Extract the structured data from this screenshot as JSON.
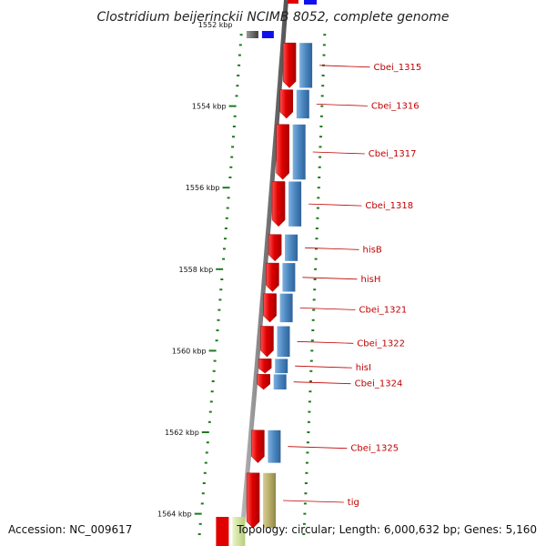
{
  "title": "Clostridium beijerinckii NCIMB 8052, complete genome",
  "accession": "Accession: NC_009617",
  "topology": "Topology: circular; Length: 6,000,632 bp; Genes: 5,160",
  "ticks": [
    {
      "label": "1552 kbp",
      "kbp": 1552
    },
    {
      "label": "1554 kbp",
      "kbp": 1554
    },
    {
      "label": "1556 kbp",
      "kbp": 1556
    },
    {
      "label": "1558 kbp",
      "kbp": 1558
    },
    {
      "label": "1560 kbp",
      "kbp": 1560
    },
    {
      "label": "1562 kbp",
      "kbp": 1562
    },
    {
      "label": "1564 kbp",
      "kbp": 1564
    }
  ],
  "colors": {
    "cds": "#e00000",
    "gene": "#4a86c0",
    "tig_gene": "#b8ad6a",
    "backbone": "#8a8a8a",
    "ticks": "#1e7a1e",
    "label": "#c00000"
  },
  "genes": [
    {
      "name": "Cbei_1315",
      "start_kbp": 1552.45,
      "end_kbp": 1553.55
    },
    {
      "name": "Cbei_1316",
      "start_kbp": 1553.6,
      "end_kbp": 1554.3
    },
    {
      "name": "Cbei_1317",
      "start_kbp": 1554.45,
      "end_kbp": 1555.8
    },
    {
      "name": "Cbei_1318",
      "start_kbp": 1555.85,
      "end_kbp": 1556.95
    },
    {
      "name": "hisB",
      "start_kbp": 1557.15,
      "end_kbp": 1557.8
    },
    {
      "name": "hisH",
      "start_kbp": 1557.85,
      "end_kbp": 1558.55
    },
    {
      "name": "Cbei_1321",
      "start_kbp": 1558.6,
      "end_kbp": 1559.3
    },
    {
      "name": "Cbei_1322",
      "start_kbp": 1559.4,
      "end_kbp": 1560.15
    },
    {
      "name": "hisI",
      "start_kbp": 1560.2,
      "end_kbp": 1560.55
    },
    {
      "name": "Cbei_1324",
      "start_kbp": 1560.58,
      "end_kbp": 1560.95
    },
    {
      "name": "Cbei_1325",
      "start_kbp": 1561.95,
      "end_kbp": 1562.75
    },
    {
      "name": "tig",
      "start_kbp": 1563.0,
      "end_kbp": 1564.35
    }
  ]
}
